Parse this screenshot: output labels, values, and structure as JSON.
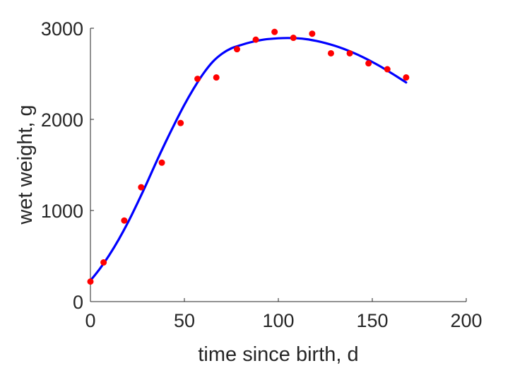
{
  "chart_data": {
    "type": "scatter",
    "xlabel": "time since birth, d",
    "ylabel": "wet weight, g",
    "xlim": [
      0,
      200
    ],
    "ylim": [
      0,
      3000
    ],
    "xticks": [
      0,
      50,
      100,
      150,
      200
    ],
    "yticks": [
      0,
      1000,
      2000,
      3000
    ],
    "xtick_labels": [
      "0",
      "50",
      "100",
      "150",
      "200"
    ],
    "ytick_labels": [
      "0",
      "1000",
      "2000",
      "3000"
    ],
    "grid": false,
    "colors": {
      "points": "#ff0000",
      "curve": "#0000ff",
      "axis": "#262626"
    },
    "series": [
      {
        "kind": "points",
        "x": [
          0,
          7,
          18,
          27,
          38,
          48,
          57,
          67,
          78,
          88,
          98,
          108,
          118,
          128,
          138,
          148,
          158,
          168
        ],
        "y": [
          220,
          430,
          890,
          1255,
          1525,
          1960,
          2445,
          2460,
          2770,
          2875,
          2960,
          2895,
          2940,
          2725,
          2725,
          2615,
          2550,
          2460
        ]
      },
      {
        "kind": "line",
        "x": [
          0,
          5,
          10,
          15,
          20,
          25,
          30,
          35,
          40,
          45,
          50,
          55,
          60,
          65,
          70,
          75,
          80,
          85,
          90,
          95,
          100,
          105,
          110,
          115,
          120,
          125,
          130,
          135,
          140,
          145,
          150,
          155,
          160,
          165,
          168
        ],
        "y": [
          230,
          360,
          510,
          680,
          870,
          1080,
          1300,
          1530,
          1750,
          1960,
          2160,
          2340,
          2500,
          2630,
          2720,
          2780,
          2815,
          2845,
          2868,
          2882,
          2890,
          2893,
          2890,
          2880,
          2862,
          2838,
          2808,
          2772,
          2730,
          2683,
          2630,
          2573,
          2510,
          2445,
          2405
        ]
      }
    ]
  }
}
